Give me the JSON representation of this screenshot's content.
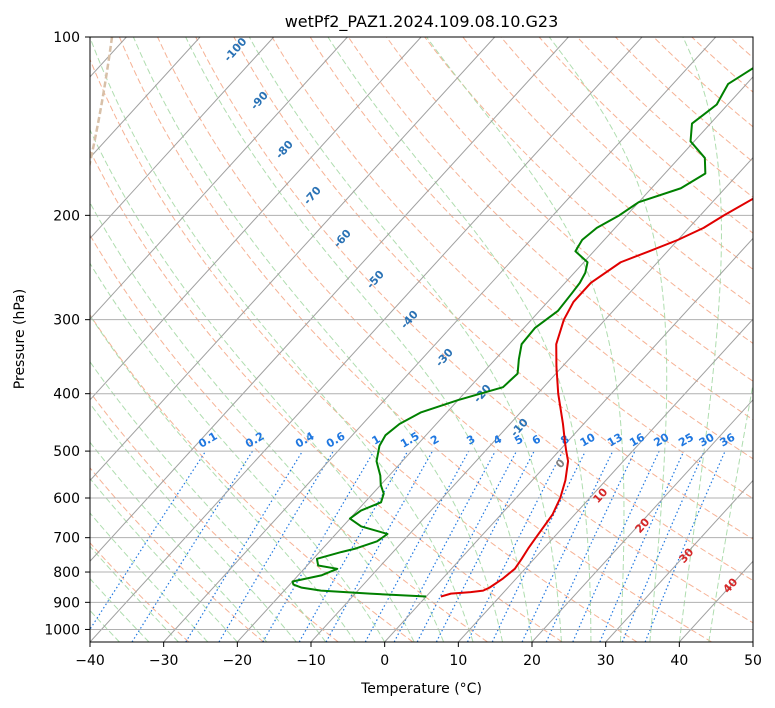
{
  "chart_data": {
    "type": "line",
    "title": "wetPf2_PAZ1.2024.109.08.10.G23",
    "xlabel": "Temperature (°C)",
    "ylabel": "Pressure (hPa)",
    "xlim": [
      -40,
      50
    ],
    "ylim": [
      1050,
      100
    ],
    "y_scale": "log",
    "x_ticks": [
      -40,
      -30,
      -20,
      -10,
      0,
      10,
      20,
      30,
      40,
      50
    ],
    "x_tick_labels": [
      "−40",
      "−30",
      "−20",
      "−10",
      "0",
      "10",
      "20",
      "30",
      "40",
      "50"
    ],
    "y_ticks": [
      1000,
      900,
      800,
      700,
      600,
      500,
      400,
      300,
      200,
      100
    ],
    "y_tick_labels": [
      "1000",
      "900",
      "800",
      "700",
      "600",
      "500",
      "400",
      "300",
      "200",
      "100"
    ],
    "grid": true,
    "series": [
      {
        "color": "#e00000",
        "points": [
          [
            880,
            2.0
          ],
          [
            870,
            3.0
          ],
          [
            865,
            5.5
          ],
          [
            860,
            7.0
          ],
          [
            850,
            7.5
          ],
          [
            820,
            8.2
          ],
          [
            790,
            8.6
          ],
          [
            760,
            8.3
          ],
          [
            730,
            7.9
          ],
          [
            700,
            7.6
          ],
          [
            670,
            7.3
          ],
          [
            640,
            7.0
          ],
          [
            600,
            6.0
          ],
          [
            560,
            4.5
          ],
          [
            520,
            2.5
          ],
          [
            500,
            1.0
          ],
          [
            480,
            -0.5
          ],
          [
            450,
            -2.8
          ],
          [
            400,
            -7.2
          ],
          [
            360,
            -10.8
          ],
          [
            330,
            -13.6
          ],
          [
            300,
            -15.6
          ],
          [
            280,
            -16.5
          ],
          [
            260,
            -16.5
          ],
          [
            240,
            -15.0
          ],
          [
            230,
            -12.5
          ],
          [
            220,
            -10.0
          ],
          [
            210,
            -8.0
          ],
          [
            200,
            -6.8
          ],
          [
            185,
            -4.5
          ],
          [
            180,
            -2.5
          ],
          [
            170,
            -1.0
          ],
          [
            160,
            0.0
          ],
          [
            150,
            1.8
          ],
          [
            140,
            4.0
          ],
          [
            130,
            6.5
          ],
          [
            125,
            7.0
          ],
          [
            120,
            7.2
          ],
          [
            115,
            8.0
          ],
          [
            110,
            9.5
          ],
          [
            105,
            10.5
          ],
          [
            100,
            11.5
          ]
        ]
      },
      {
        "color": "#008000",
        "points": [
          [
            880,
            0.0
          ],
          [
            870,
            -8.0
          ],
          [
            860,
            -15.0
          ],
          [
            850,
            -18.0
          ],
          [
            840,
            -19.5
          ],
          [
            830,
            -20.0
          ],
          [
            810,
            -16.8
          ],
          [
            790,
            -15.5
          ],
          [
            780,
            -18.5
          ],
          [
            760,
            -19.5
          ],
          [
            740,
            -17.0
          ],
          [
            730,
            -15.5
          ],
          [
            710,
            -13.5
          ],
          [
            690,
            -13.0
          ],
          [
            670,
            -17.5
          ],
          [
            650,
            -20.0
          ],
          [
            630,
            -19.5
          ],
          [
            610,
            -17.8
          ],
          [
            590,
            -18.5
          ],
          [
            570,
            -20.0
          ],
          [
            550,
            -21.2
          ],
          [
            520,
            -23.5
          ],
          [
            490,
            -25.0
          ],
          [
            470,
            -25.5
          ],
          [
            450,
            -25.0
          ],
          [
            430,
            -23.5
          ],
          [
            410,
            -20.0
          ],
          [
            390,
            -15.5
          ],
          [
            370,
            -15.2
          ],
          [
            350,
            -16.8
          ],
          [
            330,
            -18.3
          ],
          [
            310,
            -18.5
          ],
          [
            290,
            -17.5
          ],
          [
            270,
            -17.8
          ],
          [
            260,
            -18.0
          ],
          [
            250,
            -18.5
          ],
          [
            240,
            -19.5
          ],
          [
            230,
            -22.5
          ],
          [
            220,
            -23.0
          ],
          [
            210,
            -22.5
          ],
          [
            200,
            -21.0
          ],
          [
            190,
            -20.0
          ],
          [
            180,
            -16.0
          ],
          [
            170,
            -14.5
          ],
          [
            160,
            -16.5
          ],
          [
            150,
            -20.5
          ],
          [
            140,
            -22.5
          ],
          [
            135,
            -22.0
          ],
          [
            130,
            -21.5
          ],
          [
            125,
            -22.0
          ],
          [
            120,
            -22.5
          ],
          [
            115,
            -21.5
          ],
          [
            110,
            -20.5
          ],
          [
            105,
            -20.0
          ],
          [
            100,
            -19.5
          ]
        ]
      }
    ],
    "background_lines": {
      "isotherm_color": "#a0a0a0",
      "dry_adiabat_color": "#f4a582",
      "moist_adiabat_color": "#a6d9a6",
      "mixing_ratio_color": "#1f77e0",
      "lcl_color": "#d8c0a8"
    },
    "annotations": {
      "mixing_ratio_labels": [
        "0.1",
        "0.2",
        "0.4",
        "0.6",
        "1",
        "1.5",
        "2",
        "3",
        "4",
        "5",
        "6",
        "8",
        "10",
        "13",
        "16",
        "20",
        "25",
        "30",
        "36"
      ],
      "blue_isotherm_labels": [
        "-100",
        "-90",
        "-80",
        "-70",
        "-60",
        "-50",
        "-40",
        "-30",
        "-20",
        "-10"
      ],
      "gray_isotherm_label": "0",
      "red_isotherm_labels": [
        "10",
        "20",
        "30",
        "40"
      ]
    }
  }
}
